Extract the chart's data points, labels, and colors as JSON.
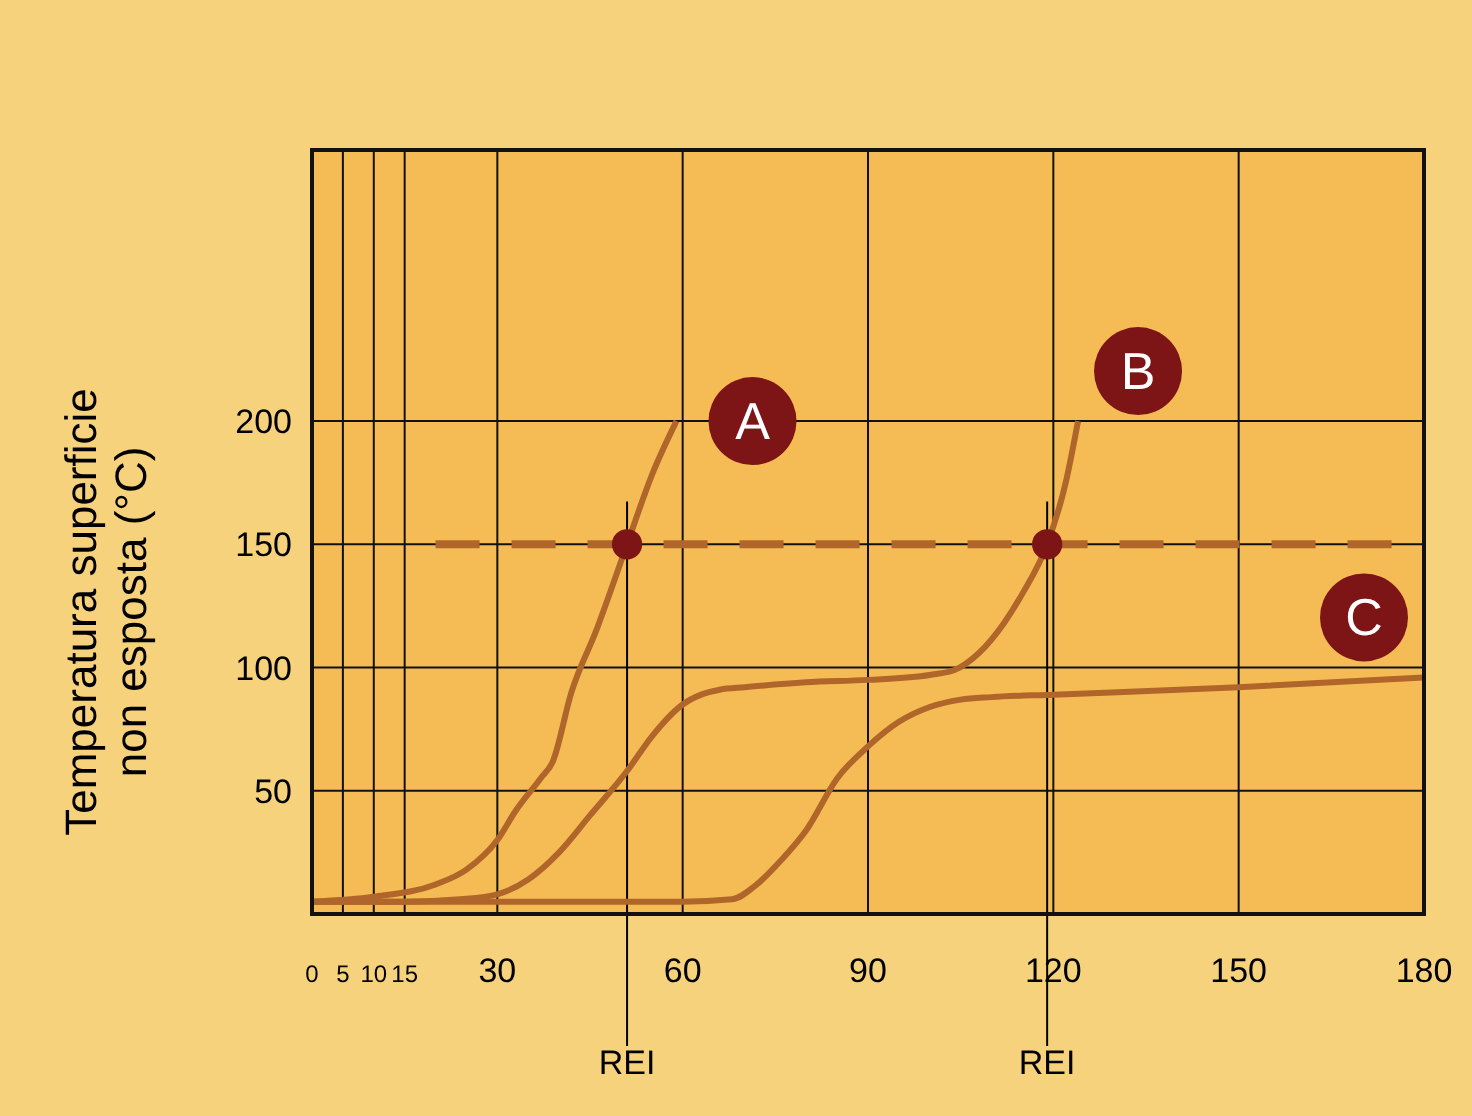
{
  "chart_data": {
    "type": "line",
    "ylabel": "Temperatura superficie\nnon esposta (°C)",
    "xlim": [
      0,
      180
    ],
    "xticks": [
      0,
      5,
      10,
      15,
      30,
      60,
      90,
      120,
      150,
      180
    ],
    "ylim": [
      0,
      310
    ],
    "yticks": [
      50,
      100,
      150,
      200
    ],
    "grid": true,
    "marker": "none",
    "line_style": "solid",
    "series": [
      {
        "name": "A",
        "color": "#b0662a",
        "x": [
          0,
          10,
          20,
          25,
          30,
          33,
          37,
          39,
          42,
          46,
          51,
          55,
          59
        ],
        "values": [
          5,
          7,
          12,
          18,
          30,
          42,
          55,
          62,
          90,
          115,
          150,
          178,
          200
        ]
      },
      {
        "name": "B",
        "color": "#b0662a",
        "x": [
          0,
          15,
          24,
          30,
          35,
          40,
          45,
          51,
          55,
          60,
          63,
          66,
          70,
          80,
          90,
          100,
          104,
          108,
          112,
          115,
          119,
          122,
          124
        ],
        "values": [
          5,
          5,
          6,
          8,
          14,
          25,
          40,
          58,
          72,
          85,
          89,
          91,
          92,
          94,
          95,
          97,
          99,
          106,
          118,
          130,
          150,
          175,
          200
        ]
      },
      {
        "name": "C",
        "color": "#b0662a",
        "x": [
          0,
          30,
          60,
          68,
          72,
          76,
          80,
          85,
          90,
          95,
          100,
          105,
          110,
          120,
          150,
          180
        ],
        "values": [
          5,
          5,
          5,
          6,
          12,
          22,
          34,
          55,
          68,
          78,
          84,
          87,
          88,
          89,
          92,
          96
        ]
      },
      {
        "type": "scatter",
        "color": "#7d1416",
        "marker": "circle",
        "x": [
          51,
          119
        ],
        "values": [
          150,
          150
        ]
      }
    ],
    "ref_lines": [
      {
        "axis": "y",
        "value": 150,
        "line_style": "dashed",
        "color": "#b0662a"
      },
      {
        "axis": "x",
        "value": 51,
        "label": "REI",
        "color": "#000000"
      },
      {
        "axis": "x",
        "value": 119,
        "label": "REI",
        "color": "#000000"
      }
    ]
  }
}
